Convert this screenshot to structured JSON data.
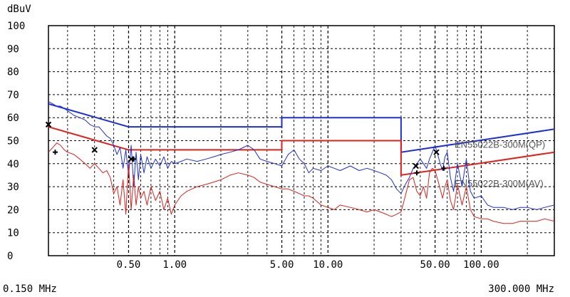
{
  "chart_data": {
    "type": "line",
    "ylabel": "dBuV",
    "x_scale": "log",
    "xlim": [
      0.15,
      300
    ],
    "ylim": [
      0,
      100
    ],
    "grid": true,
    "y_ticks": [
      0,
      10,
      20,
      30,
      40,
      50,
      60,
      70,
      80,
      90,
      100
    ],
    "y_tick_labels": [
      "0",
      "10",
      "20",
      "30",
      "40",
      "50",
      "60",
      "70",
      "80",
      "90",
      "100"
    ],
    "x_ticks": [
      0.5,
      1,
      5,
      10,
      50,
      100
    ],
    "x_tick_labels": [
      "0.50",
      "1.00",
      "5.00",
      "10.00",
      "50.00",
      "100.00"
    ],
    "x_range_start_label": "0.150 MHz",
    "x_range_end_label": "300.000 MHz",
    "colors": {
      "qp": "#1f2fd6",
      "av": "#e0201a",
      "marker": "#000000"
    },
    "limit_lines": [
      {
        "name": "EN55022B-300M(QP)",
        "color": "#1f2fd6",
        "x": [
          0.15,
          0.5,
          0.5,
          5,
          5,
          30,
          30,
          300
        ],
        "y": [
          66,
          56,
          56,
          56,
          60,
          60,
          45,
          55
        ]
      },
      {
        "name": "EN55022B-300M(AV)",
        "color": "#e0201a",
        "x": [
          0.15,
          0.5,
          0.5,
          5,
          5,
          30,
          30,
          300
        ],
        "y": [
          56,
          46,
          46,
          46,
          50,
          50,
          35,
          45
        ]
      }
    ],
    "series": [
      {
        "color": "#1f2fd6",
        "x": [
          0.15,
          0.16,
          0.17,
          0.18,
          0.19,
          0.2,
          0.22,
          0.24,
          0.26,
          0.28,
          0.3,
          0.32,
          0.34,
          0.36,
          0.38,
          0.4,
          0.42,
          0.44,
          0.46,
          0.48,
          0.5,
          0.52,
          0.54,
          0.56,
          0.58,
          0.6,
          0.63,
          0.66,
          0.7,
          0.75,
          0.8,
          0.85,
          0.9,
          0.95,
          1.0,
          1.1,
          1.2,
          1.4,
          1.6,
          1.8,
          2.0,
          2.3,
          2.6,
          3.0,
          3.3,
          3.6,
          4.0,
          4.5,
          5.0,
          5.5,
          6.0,
          6.5,
          7.0,
          7.5,
          8.0,
          9.0,
          10,
          11,
          12,
          14,
          16,
          18,
          20,
          22,
          24,
          26,
          28,
          30,
          32,
          34,
          36,
          38,
          40,
          42,
          44,
          46,
          48,
          50,
          52,
          54,
          56,
          58,
          60,
          63,
          66,
          70,
          75,
          80,
          85,
          90,
          100,
          110,
          120,
          140,
          160,
          180,
          200,
          230,
          260,
          300
        ],
        "values": [
          67,
          66,
          65,
          65,
          64,
          63,
          61,
          60,
          59,
          57,
          56,
          56,
          54,
          52,
          51,
          48,
          44,
          47,
          38,
          46,
          35,
          48,
          30,
          45,
          33,
          44,
          36,
          43,
          38,
          42,
          39,
          43,
          38,
          41,
          40,
          41,
          42,
          41,
          42,
          43,
          44,
          45,
          46,
          48,
          46,
          42,
          41,
          40,
          39,
          44,
          46,
          42,
          40,
          36,
          38,
          37,
          39,
          38,
          37,
          39,
          37,
          38,
          37,
          36,
          35,
          33,
          29,
          27,
          31,
          34,
          38,
          40,
          42,
          40,
          38,
          42,
          45,
          48,
          44,
          40,
          37,
          43,
          45,
          34,
          28,
          40,
          30,
          42,
          28,
          25,
          26,
          22,
          21,
          21,
          20,
          21,
          21,
          20,
          21,
          22
        ]
      },
      {
        "color": "#e0201a",
        "x": [
          0.15,
          0.16,
          0.17,
          0.18,
          0.19,
          0.2,
          0.22,
          0.24,
          0.26,
          0.28,
          0.3,
          0.32,
          0.34,
          0.36,
          0.38,
          0.4,
          0.42,
          0.44,
          0.46,
          0.48,
          0.5,
          0.52,
          0.54,
          0.56,
          0.58,
          0.6,
          0.63,
          0.66,
          0.7,
          0.75,
          0.8,
          0.85,
          0.9,
          0.95,
          1.0,
          1.1,
          1.2,
          1.4,
          1.6,
          1.8,
          2.0,
          2.3,
          2.6,
          3.0,
          3.3,
          3.6,
          4.0,
          4.5,
          5.0,
          5.5,
          6.0,
          6.5,
          7.0,
          7.5,
          8.0,
          9.0,
          10,
          11,
          12,
          14,
          16,
          18,
          20,
          22,
          24,
          26,
          28,
          30,
          32,
          34,
          36,
          38,
          40,
          42,
          44,
          46,
          48,
          50,
          52,
          54,
          56,
          58,
          60,
          63,
          66,
          70,
          75,
          80,
          85,
          90,
          100,
          110,
          120,
          140,
          160,
          180,
          200,
          230,
          260,
          300
        ],
        "values": [
          45,
          47,
          49,
          48,
          46,
          45,
          44,
          42,
          40,
          38,
          40,
          38,
          36,
          37,
          34,
          27,
          30,
          22,
          33,
          18,
          40,
          20,
          35,
          22,
          30,
          25,
          28,
          22,
          30,
          24,
          28,
          20,
          25,
          18,
          22,
          26,
          28,
          30,
          31,
          32,
          33,
          35,
          36,
          35,
          34,
          32,
          31,
          30,
          29,
          29,
          28,
          27,
          26,
          26,
          25,
          22,
          21,
          20,
          22,
          21,
          20,
          19,
          20,
          19,
          18,
          17,
          18,
          19,
          26,
          33,
          34,
          28,
          26,
          30,
          25,
          36,
          38,
          37,
          33,
          29,
          25,
          30,
          33,
          24,
          20,
          31,
          22,
          30,
          20,
          17,
          16,
          16,
          15,
          14,
          14,
          15,
          15,
          15,
          16,
          15
        ]
      }
    ],
    "peak_markers": [
      {
        "symbol": "x",
        "x": 0.15,
        "y": 57
      },
      {
        "symbol": "+",
        "x": 0.166,
        "y": 45
      },
      {
        "symbol": "x",
        "x": 0.3,
        "y": 46
      },
      {
        "symbol": "x",
        "x": 0.52,
        "y": 42
      },
      {
        "symbol": "+",
        "x": 0.54,
        "y": 42
      },
      {
        "symbol": "x",
        "x": 37.5,
        "y": 39
      },
      {
        "symbol": "+",
        "x": 38,
        "y": 36
      },
      {
        "symbol": "x",
        "x": 51,
        "y": 45
      },
      {
        "symbol": "+",
        "x": 57,
        "y": 38
      }
    ]
  }
}
